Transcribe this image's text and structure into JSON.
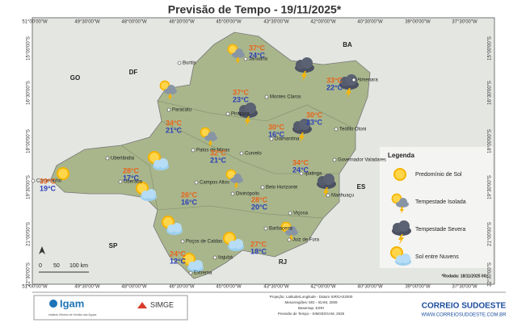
{
  "title": "Previsão de Tempo - 19/11/2025*",
  "lon_labels": [
    "51°00'00\"W",
    "49°30'00\"W",
    "48°00'00\"W",
    "46°30'00\"W",
    "45°00'00\"W",
    "43°30'00\"W",
    "42°00'00\"W",
    "40°30'00\"W",
    "39°00'00\"W",
    "37°30'00\"W"
  ],
  "lat_labels": [
    "15°00'00\"S",
    "16°30'00\"S",
    "18°00'00\"S",
    "19°30'00\"S",
    "21°00'00\"S",
    "22°30'00\"S"
  ],
  "states": [
    "GO",
    "DF",
    "BA",
    "ES",
    "SP",
    "RJ"
  ],
  "cities": [
    "Buritis",
    "Januária",
    "Paracatu",
    "Montes Claros",
    "Almenara",
    "Pirapora",
    "Teófilo Otoni",
    "Diamantina",
    "Patos de Minas",
    "Curvelo",
    "Governador Valadares",
    "Uberlândia",
    "Uberaba",
    "Campos Altos",
    "Ipatinga",
    "Belo Horizonte",
    "Divinópolis",
    "Manhuaçu",
    "Viçosa",
    "Barbacena",
    "Juiz de Fora",
    "Poços de Caldas",
    "Itajubá",
    "Extrema",
    "Carneirinho"
  ],
  "forecasts": [
    {
      "max": "37°C",
      "min": "24°C"
    },
    {
      "max": "33°C",
      "min": "22°C"
    },
    {
      "max": "34°C",
      "min": "21°C"
    },
    {
      "max": "37°C",
      "min": "23°C"
    },
    {
      "max": "30°C",
      "min": "16°C"
    },
    {
      "max": "30°C",
      "min": "23°C"
    },
    {
      "max": "32°C",
      "min": "21°C"
    },
    {
      "max": "28°C",
      "min": "17°C"
    },
    {
      "max": "39°C",
      "min": "19°C"
    },
    {
      "max": "34°C",
      "min": "24°C"
    },
    {
      "max": "26°C",
      "min": "16°C"
    },
    {
      "max": "28°C",
      "min": "20°C"
    },
    {
      "max": "27°C",
      "min": "18°C"
    },
    {
      "max": "24°C",
      "min": "12°C"
    }
  ],
  "legend": {
    "title": "Legenda",
    "items": [
      "Predomínio de Sol",
      "Tempestade Isolada",
      "Tempestade Severa",
      "Sol entre Nuvens"
    ]
  },
  "scale": {
    "ticks": [
      "0",
      "50",
      "100 km"
    ]
  },
  "run_note": "*Rodada: 18/11/2025 00z",
  "footer": {
    "igam": "Igam",
    "igam_sub": "Instituto Mineiro de Gestão das Águas",
    "simge": "SIMGE",
    "credits": [
      "Projeção: Latitude/Longitude - Datum SIRGAS2000",
      "Mesorregiões: MG - IGAM, 2009",
      "Basemap: ESRI",
      "Previsão de Tempo - SIMGE/IGAM, 2025"
    ],
    "brand": "CORREIO SUDOESTE",
    "site": "WWW.CORREIOSUDOESTE.COM.BR"
  }
}
